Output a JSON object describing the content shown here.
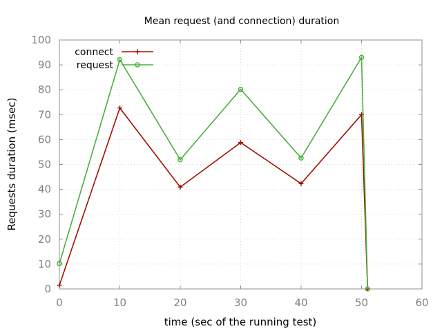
{
  "chart_data": {
    "type": "line",
    "title": "Mean request (and connection) duration",
    "xlabel": "time (sec of the running test)",
    "ylabel": "Requests duration (msec)",
    "xlim": [
      0,
      60
    ],
    "ylim": [
      0,
      100
    ],
    "x_ticks": [
      0,
      10,
      20,
      30,
      40,
      50,
      60
    ],
    "y_ticks": [
      0,
      10,
      20,
      30,
      40,
      50,
      60,
      70,
      80,
      90,
      100
    ],
    "grid": true,
    "legend_position": "top-left",
    "series": [
      {
        "name": "connect",
        "color": "#a01000",
        "marker": "plus",
        "x": [
          0,
          10,
          20,
          30,
          40,
          50,
          51
        ],
        "y": [
          1.5,
          72.7,
          40.9,
          58.8,
          42.3,
          70.0,
          0
        ]
      },
      {
        "name": "request",
        "color": "#4aaf3c",
        "marker": "circle",
        "x": [
          0,
          10,
          20,
          30,
          40,
          50,
          51
        ],
        "y": [
          10.2,
          92.1,
          51.9,
          80.2,
          52.6,
          93.0,
          0
        ]
      }
    ]
  }
}
